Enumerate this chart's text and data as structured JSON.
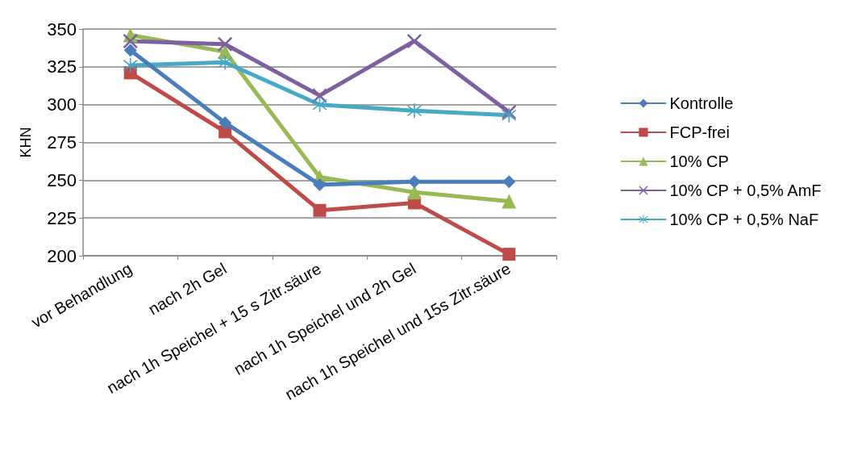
{
  "chart_data": {
    "type": "line",
    "ylabel": "KHN",
    "categories": [
      "vor Behandlung",
      "nach 2h Gel",
      "nach 1h Speichel + 15 s Zitr.säure",
      "nach 1h Speichel und 2h Gel",
      "nach 1h Speichel und 15s Zitr.säure"
    ],
    "series": [
      {
        "name": "Kontrolle",
        "color": "#4a7ebb",
        "marker": "diamond",
        "values": [
          336,
          288,
          247,
          249,
          249
        ]
      },
      {
        "name": "FCP-frei",
        "color": "#be4b48",
        "marker": "square",
        "values": [
          321,
          282,
          230,
          235,
          201
        ]
      },
      {
        "name": "10% CP",
        "color": "#98b954",
        "marker": "triangle",
        "values": [
          346,
          335,
          252,
          242,
          236
        ]
      },
      {
        "name": "10% CP + 0,5% AmF",
        "color": "#7d60a0",
        "marker": "cross",
        "values": [
          342,
          340,
          306,
          342,
          295
        ]
      },
      {
        "name": "10% CP + 0,5% NaF",
        "color": "#46aac5",
        "marker": "star",
        "values": [
          326,
          328,
          300,
          296,
          293
        ]
      }
    ],
    "ylim": [
      200,
      350
    ],
    "yticks": [
      200,
      225,
      250,
      275,
      300,
      325,
      350
    ],
    "grid": "y",
    "legend": "right"
  }
}
